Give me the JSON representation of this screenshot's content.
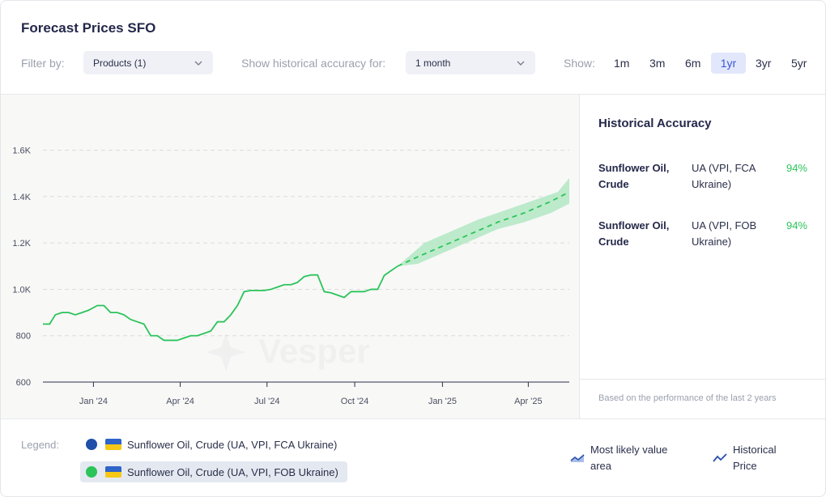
{
  "title": "Forecast Prices SFO",
  "filters": {
    "filter_by_label": "Filter by:",
    "products_value": "Products (1)",
    "accuracy_label": "Show historical accuracy for:",
    "accuracy_value": "1 month",
    "show_label": "Show:",
    "ranges": [
      "1m",
      "3m",
      "6m",
      "1yr",
      "3yr",
      "5yr"
    ],
    "active_range": "1yr"
  },
  "chart_data": {
    "type": "line",
    "title": "",
    "xlabel": "",
    "ylabel": "",
    "watermark": "Vesper",
    "ylim": [
      600,
      1700
    ],
    "y_ticks": [
      600,
      800,
      1000,
      1200,
      1400,
      1600
    ],
    "y_tick_labels": [
      "600",
      "800",
      "1.0K",
      "1.2K",
      "1.4K",
      "1.6K"
    ],
    "x_ticks": [
      "2024-01-15",
      "2024-04-15",
      "2024-07-15",
      "2024-10-15",
      "2025-01-15",
      "2025-04-15"
    ],
    "x_tick_labels": [
      "Jan '24",
      "Apr '24",
      "Jul '24",
      "Oct '24",
      "Jan '25",
      "Apr '25"
    ],
    "xlim": [
      "2023-11-23",
      "2025-05-28"
    ],
    "grid": true,
    "series": [
      {
        "style": "solid",
        "color": "#2bc45a",
        "points": [
          [
            "2023-11-23",
            850
          ],
          [
            "2023-11-30",
            850
          ],
          [
            "2023-12-06",
            890
          ],
          [
            "2023-12-13",
            900
          ],
          [
            "2023-12-20",
            900
          ],
          [
            "2023-12-27",
            890
          ],
          [
            "2024-01-03",
            900
          ],
          [
            "2024-01-10",
            910
          ],
          [
            "2024-01-19",
            930
          ],
          [
            "2024-01-26",
            930
          ],
          [
            "2024-02-02",
            900
          ],
          [
            "2024-02-09",
            900
          ],
          [
            "2024-02-16",
            890
          ],
          [
            "2024-02-23",
            870
          ],
          [
            "2024-03-01",
            860
          ],
          [
            "2024-03-08",
            850
          ],
          [
            "2024-03-15",
            800
          ],
          [
            "2024-03-22",
            800
          ],
          [
            "2024-03-29",
            780
          ],
          [
            "2024-04-05",
            780
          ],
          [
            "2024-04-12",
            780
          ],
          [
            "2024-04-19",
            790
          ],
          [
            "2024-04-26",
            800
          ],
          [
            "2024-05-03",
            800
          ],
          [
            "2024-05-10",
            810
          ],
          [
            "2024-05-17",
            820
          ],
          [
            "2024-05-24",
            860
          ],
          [
            "2024-05-31",
            860
          ],
          [
            "2024-06-07",
            890
          ],
          [
            "2024-06-14",
            930
          ],
          [
            "2024-06-21",
            990
          ],
          [
            "2024-06-28",
            995
          ],
          [
            "2024-07-05",
            995
          ],
          [
            "2024-07-12",
            995
          ],
          [
            "2024-07-19",
            1000
          ],
          [
            "2024-07-26",
            1010
          ],
          [
            "2024-08-02",
            1020
          ],
          [
            "2024-08-09",
            1020
          ],
          [
            "2024-08-16",
            1030
          ],
          [
            "2024-08-23",
            1055
          ],
          [
            "2024-08-30",
            1062
          ],
          [
            "2024-09-06",
            1062
          ],
          [
            "2024-09-13",
            990
          ],
          [
            "2024-09-20",
            985
          ],
          [
            "2024-09-27",
            975
          ],
          [
            "2024-10-04",
            965
          ],
          [
            "2024-10-11",
            990
          ],
          [
            "2024-10-18",
            990
          ],
          [
            "2024-10-25",
            990
          ],
          [
            "2024-11-01",
            1000
          ],
          [
            "2024-11-08",
            1000
          ],
          [
            "2024-11-15",
            1060
          ],
          [
            "2024-11-22",
            1080
          ],
          [
            "2024-11-29",
            1100
          ]
        ]
      },
      {
        "style": "dashed",
        "color": "#2bc45a",
        "points": [
          [
            "2024-11-29",
            1100
          ],
          [
            "2024-12-20",
            1140
          ],
          [
            "2025-01-17",
            1190
          ],
          [
            "2025-02-14",
            1240
          ],
          [
            "2025-03-14",
            1290
          ],
          [
            "2025-04-11",
            1330
          ],
          [
            "2025-05-09",
            1380
          ],
          [
            "2025-05-28",
            1420
          ]
        ]
      }
    ],
    "band": {
      "color": "#a8e6bc",
      "upper": [
        [
          "2024-11-29",
          1100
        ],
        [
          "2024-12-27",
          1200
        ],
        [
          "2025-01-24",
          1250
        ],
        [
          "2025-02-21",
          1300
        ],
        [
          "2025-03-21",
          1340
        ],
        [
          "2025-04-18",
          1380
        ],
        [
          "2025-05-16",
          1420
        ],
        [
          "2025-05-28",
          1480
        ]
      ],
      "lower": [
        [
          "2024-11-29",
          1100
        ],
        [
          "2024-12-20",
          1110
        ],
        [
          "2025-01-17",
          1160
        ],
        [
          "2025-02-14",
          1210
        ],
        [
          "2025-03-14",
          1260
        ],
        [
          "2025-04-11",
          1290
        ],
        [
          "2025-05-09",
          1330
        ],
        [
          "2025-05-28",
          1370
        ]
      ]
    }
  },
  "accuracy": {
    "title": "Historical Accuracy",
    "rows": [
      {
        "name": "Sunflower Oil, Crude",
        "location": "UA (VPI, FCA Ukraine)",
        "value": "94%"
      },
      {
        "name": "Sunflower Oil, Crude",
        "location": "UA (VPI, FOB Ukraine)",
        "value": "94%"
      }
    ],
    "note": "Based on the performance of the last 2 years"
  },
  "legend": {
    "label": "Legend:",
    "items": [
      {
        "text": "Sunflower Oil, Crude (UA, VPI, FCA Ukraine)",
        "color": "#1f4fa8",
        "flag": "ukraine-flag-icon"
      },
      {
        "text": "Sunflower Oil, Crude (UA, VPI, FOB Ukraine)",
        "color": "#2bc45a",
        "flag": "ukraine-flag-icon",
        "selected": true
      }
    ],
    "keys": [
      {
        "text": "Most likely value area",
        "icon": "area-chart-icon"
      },
      {
        "text": "Historical Price",
        "icon": "line-chart-icon"
      }
    ]
  }
}
